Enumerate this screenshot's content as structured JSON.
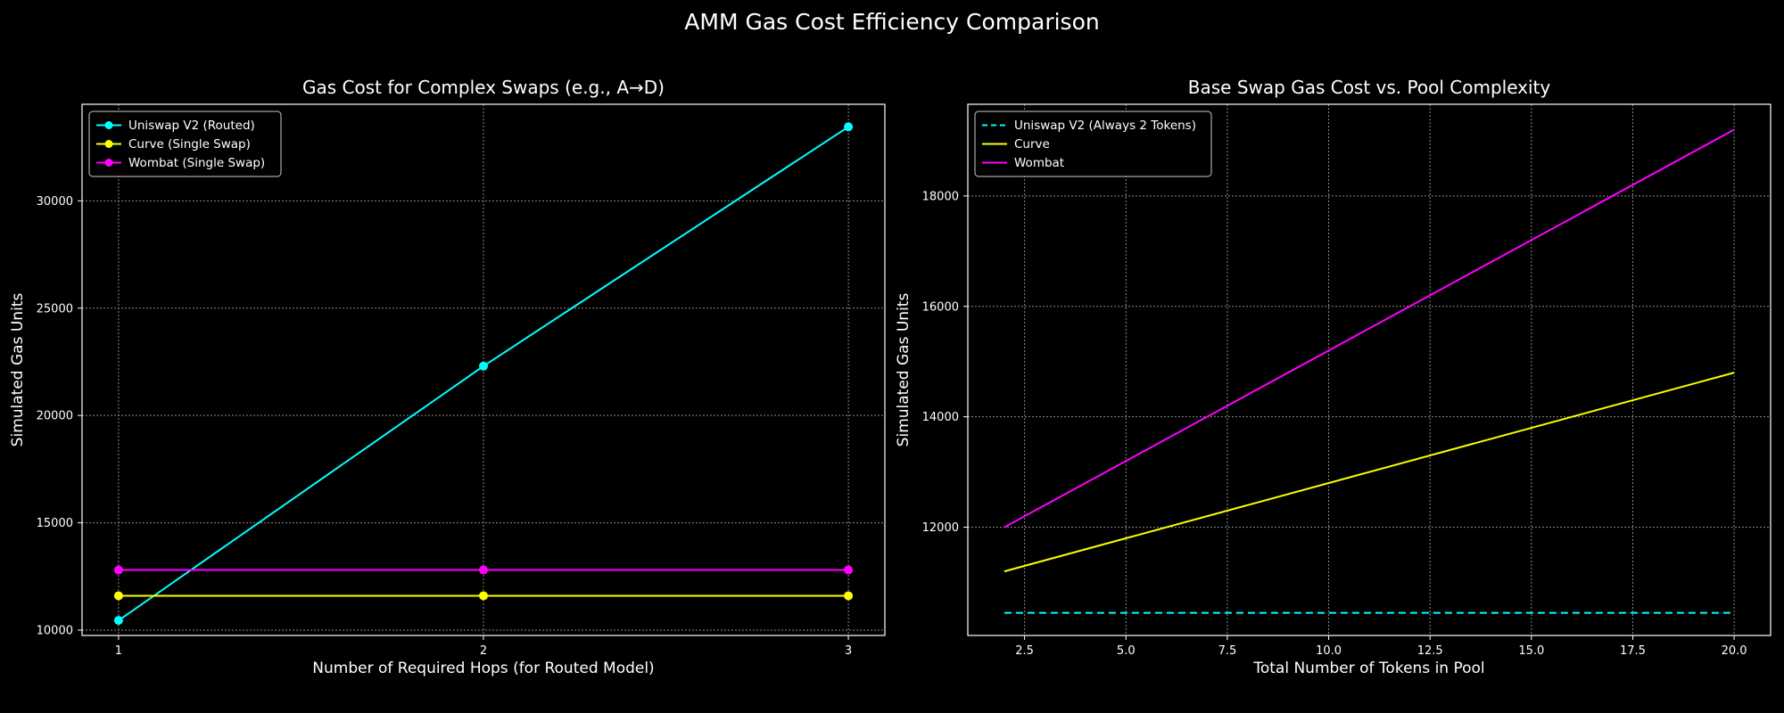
{
  "figure_title": "AMM Gas Cost Efficiency Comparison",
  "colors": {
    "background": "#000000",
    "grid": "#8a8a8a",
    "axes": "#ffffff",
    "text": "#ffffff"
  },
  "chart_data": [
    {
      "type": "line",
      "title": "Gas Cost for Complex Swaps (e.g., A→D)",
      "xlabel": "Number of Required Hops (for Routed Model)",
      "ylabel": "Simulated Gas Units",
      "x": [
        1,
        2,
        3
      ],
      "xticks": [
        1,
        2,
        3
      ],
      "xtick_labels": [
        "1",
        "2",
        "3"
      ],
      "yticks": [
        10000,
        15000,
        20000,
        25000,
        30000
      ],
      "ytick_labels": [
        "10000",
        "15000",
        "20000",
        "25000",
        "30000"
      ],
      "xlim": [
        0.9,
        3.1
      ],
      "ylim": [
        9750,
        34500
      ],
      "grid": true,
      "legend_position": "upper-left",
      "series": [
        {
          "name": "Uniswap V2 (Routed)",
          "color": "#00ffff",
          "marker": "circle",
          "dash": "solid",
          "values": [
            10450,
            22300,
            33450
          ]
        },
        {
          "name": "Curve (Single Swap)",
          "color": "#ffff00",
          "marker": "circle",
          "dash": "solid",
          "values": [
            11600,
            11600,
            11600
          ]
        },
        {
          "name": "Wombat (Single Swap)",
          "color": "#ff00ff",
          "marker": "circle",
          "dash": "solid",
          "values": [
            12800,
            12800,
            12800
          ]
        }
      ]
    },
    {
      "type": "line",
      "title": "Base Swap Gas Cost vs. Pool Complexity",
      "xlabel": "Total Number of Tokens in Pool",
      "ylabel": "Simulated Gas Units",
      "xticks": [
        2.5,
        5,
        7.5,
        10,
        12.5,
        15,
        17.5,
        20
      ],
      "xtick_labels": [
        "2.5",
        "5.0",
        "7.5",
        "10.0",
        "12.5",
        "15.0",
        "17.5",
        "20.0"
      ],
      "yticks": [
        12000,
        14000,
        16000,
        18000
      ],
      "ytick_labels": [
        "12000",
        "14000",
        "16000",
        "18000"
      ],
      "xlim": [
        1.1,
        20.9
      ],
      "ylim": [
        10040,
        19660
      ],
      "grid": true,
      "legend_position": "upper-left",
      "series": [
        {
          "name": "Uniswap V2 (Always 2 Tokens)",
          "color": "#00ffff",
          "marker": "none",
          "dash": "dashed",
          "x": [
            2,
            20
          ],
          "values": [
            10450,
            10450
          ]
        },
        {
          "name": "Curve",
          "color": "#ffff00",
          "marker": "none",
          "dash": "solid",
          "x": [
            2,
            20
          ],
          "values": [
            11200,
            14800
          ]
        },
        {
          "name": "Wombat",
          "color": "#ff00ff",
          "marker": "none",
          "dash": "solid",
          "x": [
            2,
            20
          ],
          "values": [
            12000,
            19200
          ]
        }
      ]
    }
  ]
}
